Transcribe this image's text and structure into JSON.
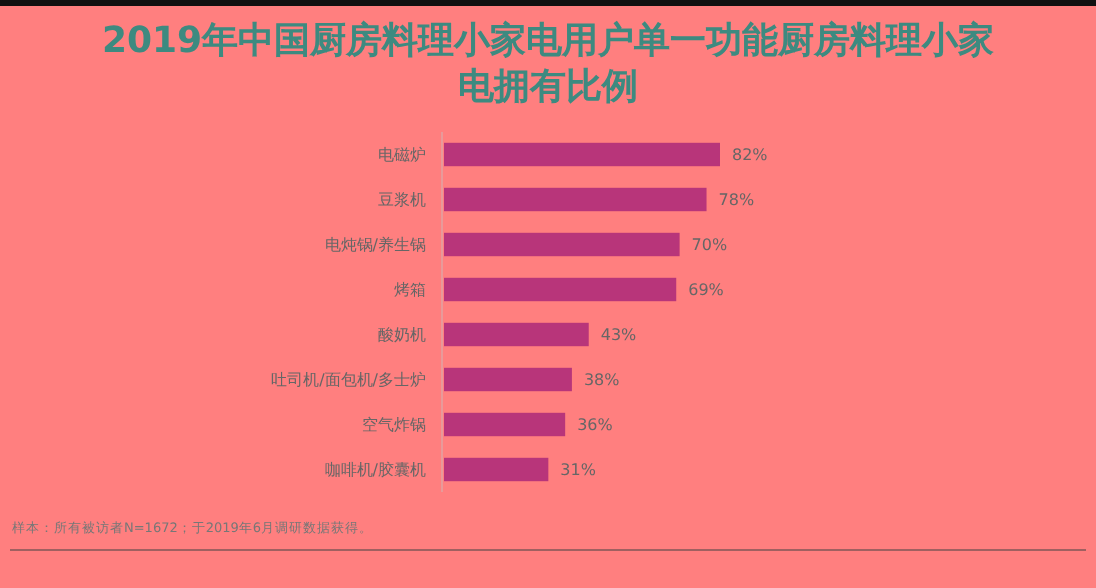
{
  "chart_data": {
    "type": "bar",
    "orientation": "horizontal",
    "title": "2019年中国厨房料理小家电用户单一功能厨房料理小家电拥有比例",
    "categories": [
      "电磁炉",
      "豆浆机",
      "电炖锅/养生锅",
      "烤箱",
      "酸奶机",
      "吐司机/面包机/多士炉",
      "空气炸锅",
      "咖啡机/胶囊机"
    ],
    "values": [
      82,
      78,
      70,
      69,
      43,
      38,
      36,
      31
    ],
    "value_labels": [
      "82%",
      "78%",
      "70%",
      "69%",
      "43%",
      "38%",
      "36%",
      "31%"
    ],
    "color": "#b8357a",
    "annotations": [
      "样本：所有被访者N=1672；于2019年6月调研数据获得。"
    ]
  }
}
